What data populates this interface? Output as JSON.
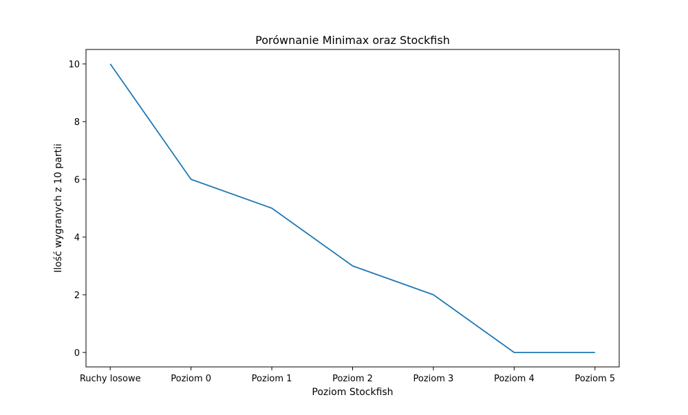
{
  "chart_data": {
    "type": "line",
    "title": "Porównanie Minimax oraz Stockfish",
    "xlabel": "Poziom Stockfish",
    "ylabel": "Ilość wygranych z 10 partii",
    "categories": [
      "Ruchy losowe",
      "Poziom 0",
      "Poziom 1",
      "Poziom 2",
      "Poziom 3",
      "Poziom 4",
      "Poziom 5"
    ],
    "series": [
      {
        "values": [
          10,
          6,
          5,
          3,
          2,
          0,
          0
        ],
        "color": "#1f77b4"
      }
    ],
    "ylim": [
      -0.5,
      10.5
    ],
    "yticks": [
      0,
      2,
      4,
      6,
      8,
      10
    ],
    "grid": false,
    "legend": "none"
  }
}
